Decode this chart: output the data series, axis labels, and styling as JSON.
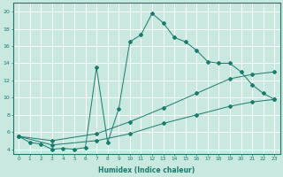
{
  "xlabel": "Humidex (Indice chaleur)",
  "bg_color": "#c8e8e0",
  "line_color": "#1a7a6e",
  "grid_color": "#ffffff",
  "xlim": [
    -0.5,
    23.5
  ],
  "ylim": [
    3.5,
    21
  ],
  "xticks": [
    0,
    1,
    2,
    3,
    4,
    5,
    6,
    7,
    8,
    9,
    10,
    11,
    12,
    13,
    14,
    15,
    16,
    17,
    18,
    19,
    20,
    21,
    22,
    23
  ],
  "yticks": [
    4,
    6,
    8,
    10,
    12,
    14,
    16,
    18,
    20
  ],
  "line1_x": [
    0,
    1,
    2,
    3,
    4,
    5,
    6,
    7,
    8,
    9,
    10,
    11,
    12,
    13,
    14,
    15,
    16,
    17,
    18,
    19,
    20,
    21,
    22,
    23
  ],
  "line1_y": [
    5.5,
    4.8,
    4.6,
    4.0,
    4.1,
    4.0,
    4.2,
    13.5,
    4.8,
    8.7,
    16.5,
    17.3,
    19.8,
    18.7,
    17.0,
    16.5,
    15.5,
    14.2,
    14.0,
    14.0,
    13.0,
    11.5,
    10.5,
    9.8
  ],
  "line2_x": [
    0,
    23
  ],
  "line2_y": [
    5.5,
    13.0
  ],
  "line3_x": [
    0,
    23
  ],
  "line3_y": [
    5.5,
    9.8
  ],
  "line2_markers_x": [
    0,
    3,
    7,
    10,
    13,
    16,
    19,
    21,
    23
  ],
  "line2_markers_y": [
    5.5,
    5.0,
    5.8,
    7.2,
    8.8,
    10.5,
    12.2,
    12.7,
    13.0
  ],
  "line3_markers_x": [
    0,
    3,
    7,
    10,
    13,
    16,
    19,
    21,
    23
  ],
  "line3_markers_y": [
    5.5,
    4.5,
    5.0,
    5.8,
    7.0,
    8.0,
    9.0,
    9.5,
    9.8
  ]
}
